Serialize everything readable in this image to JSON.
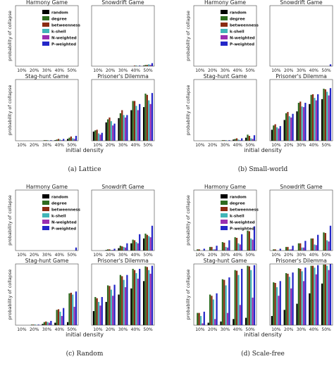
{
  "chart_data": {
    "type": "bar",
    "series_names": [
      "random",
      "degree",
      "betweenness",
      "k-shell",
      "N-weighted",
      "P-weighted"
    ],
    "colors": [
      "#000000",
      "#2e6b1f",
      "#8b2b12",
      "#42b6b8",
      "#9b2fb0",
      "#2427c8"
    ],
    "categories": [
      "10%",
      "20%",
      "30%",
      "40%",
      "50%"
    ],
    "xlabel": "initial density",
    "ylabel": "probability of collapse",
    "ylim": [
      0,
      1
    ],
    "grid": false,
    "legend_location": "inside first subplot of each group",
    "groups": [
      {
        "caption": "(a) Lattice",
        "panels": [
          {
            "title": "Harmony Game",
            "legend": true,
            "values": [
              [
                0,
                0,
                0,
                0,
                0
              ],
              [
                0,
                0,
                0,
                0,
                0
              ],
              [
                0,
                0,
                0,
                0,
                0
              ],
              [
                0,
                0,
                0,
                0,
                0
              ],
              [
                0,
                0,
                0,
                0,
                0
              ],
              [
                0,
                0,
                0,
                0,
                0
              ]
            ]
          },
          {
            "title": "Snowdrift Game",
            "legend": false,
            "values": [
              [
                0,
                0,
                0,
                0,
                0.01
              ],
              [
                0,
                0,
                0,
                0,
                0.02
              ],
              [
                0,
                0,
                0,
                0.01,
                0.02
              ],
              [
                0,
                0,
                0,
                0.01,
                0.03
              ],
              [
                0,
                0,
                0,
                0,
                0.02
              ],
              [
                0,
                0,
                0,
                0.01,
                0.05
              ]
            ]
          },
          {
            "title": "Stag-hunt Game",
            "legend": false,
            "values": [
              [
                0,
                0,
                0,
                0.01,
                0.03
              ],
              [
                0,
                0,
                0.01,
                0.02,
                0.05
              ],
              [
                0,
                0,
                0.01,
                0.03,
                0.07
              ],
              [
                0,
                0,
                0.01,
                0.02,
                0.04
              ],
              [
                0,
                0,
                0,
                0.01,
                0.03
              ],
              [
                0,
                0,
                0.01,
                0.03,
                0.08
              ]
            ]
          },
          {
            "title": "Prisoner's Dilemma",
            "legend": false,
            "values": [
              [
                0.15,
                0.3,
                0.37,
                0.5,
                0.55
              ],
              [
                0.17,
                0.35,
                0.45,
                0.65,
                0.77
              ],
              [
                0.18,
                0.38,
                0.5,
                0.65,
                0.75
              ],
              [
                0.12,
                0.32,
                0.42,
                0.57,
                0.66
              ],
              [
                0.1,
                0.25,
                0.38,
                0.5,
                0.6
              ],
              [
                0.13,
                0.28,
                0.42,
                0.6,
                0.78
              ]
            ]
          }
        ]
      },
      {
        "caption": "(b) Small-world",
        "panels": [
          {
            "title": "Harmony Game",
            "legend": true,
            "values": [
              [
                0,
                0,
                0,
                0,
                0
              ],
              [
                0,
                0,
                0,
                0,
                0
              ],
              [
                0,
                0,
                0,
                0,
                0
              ],
              [
                0,
                0,
                0,
                0,
                0
              ],
              [
                0,
                0,
                0,
                0,
                0
              ],
              [
                0,
                0,
                0,
                0,
                0
              ]
            ]
          },
          {
            "title": "Snowdrift Game",
            "legend": false,
            "values": [
              [
                0,
                0,
                0,
                0,
                0
              ],
              [
                0,
                0,
                0,
                0,
                0
              ],
              [
                0,
                0,
                0,
                0,
                0
              ],
              [
                0,
                0,
                0,
                0,
                0
              ],
              [
                0,
                0,
                0,
                0,
                0
              ],
              [
                0,
                0,
                0,
                0,
                0.03
              ]
            ]
          },
          {
            "title": "Stag-hunt Game",
            "legend": false,
            "values": [
              [
                0,
                0,
                0,
                0.02,
                0.05
              ],
              [
                0,
                0,
                0.01,
                0.03,
                0.1
              ],
              [
                0,
                0,
                0.01,
                0.04,
                0.08
              ],
              [
                0,
                0,
                0.01,
                0.02,
                0.04
              ],
              [
                0,
                0,
                0,
                0.01,
                0.03
              ],
              [
                0,
                0,
                0.01,
                0.04,
                0.09
              ]
            ]
          },
          {
            "title": "Prisoner's Dilemma",
            "legend": false,
            "values": [
              [
                0.18,
                0.34,
                0.48,
                0.6,
                0.68
              ],
              [
                0.25,
                0.45,
                0.62,
                0.75,
                0.85
              ],
              [
                0.27,
                0.47,
                0.64,
                0.76,
                0.84
              ],
              [
                0.22,
                0.4,
                0.56,
                0.7,
                0.8
              ],
              [
                0.2,
                0.38,
                0.55,
                0.66,
                0.74
              ],
              [
                0.24,
                0.44,
                0.62,
                0.76,
                0.86
              ]
            ]
          }
        ]
      },
      {
        "caption": "(c) Random",
        "panels": [
          {
            "title": "Harmony Game",
            "legend": true,
            "values": [
              [
                0,
                0,
                0,
                0,
                0
              ],
              [
                0,
                0,
                0,
                0,
                0
              ],
              [
                0,
                0,
                0,
                0,
                0
              ],
              [
                0,
                0,
                0,
                0,
                0
              ],
              [
                0,
                0,
                0,
                0,
                0
              ],
              [
                0,
                0,
                0,
                0,
                0.05
              ]
            ]
          },
          {
            "title": "Snowdrift Game",
            "legend": false,
            "values": [
              [
                0,
                0.01,
                0.04,
                0.12,
                0.2
              ],
              [
                0,
                0.02,
                0.08,
                0.18,
                0.28
              ],
              [
                0,
                0.02,
                0.07,
                0.17,
                0.26
              ],
              [
                0,
                0.01,
                0.06,
                0.14,
                0.24
              ],
              [
                0,
                0.01,
                0.05,
                0.12,
                0.22
              ],
              [
                0,
                0.03,
                0.12,
                0.27,
                0.41
              ]
            ]
          },
          {
            "title": "Stag-hunt Game",
            "legend": false,
            "values": [
              [
                0,
                0,
                0.02,
                0.04,
                0.05
              ],
              [
                0,
                0.01,
                0.05,
                0.25,
                0.52
              ],
              [
                0,
                0.01,
                0.06,
                0.26,
                0.53
              ],
              [
                0,
                0.01,
                0.05,
                0.22,
                0.5
              ],
              [
                0,
                0,
                0.04,
                0.15,
                0.3
              ],
              [
                0,
                0.01,
                0.07,
                0.28,
                0.55
              ]
            ]
          },
          {
            "title": "Prisoner's Dilemma",
            "legend": false,
            "values": [
              [
                0.23,
                0.38,
                0.5,
                0.6,
                0.72
              ],
              [
                0.46,
                0.65,
                0.82,
                0.92,
                0.96
              ],
              [
                0.44,
                0.64,
                0.8,
                0.9,
                0.95
              ],
              [
                0.38,
                0.58,
                0.74,
                0.85,
                0.9
              ],
              [
                0.32,
                0.48,
                0.62,
                0.76,
                0.84
              ],
              [
                0.46,
                0.66,
                0.82,
                0.92,
                0.97
              ]
            ]
          }
        ]
      },
      {
        "caption": "(d) Scale-free",
        "panels": [
          {
            "title": "Harmony Game",
            "legend": true,
            "values": [
              [
                0,
                0,
                0,
                0,
                0
              ],
              [
                0.02,
                0.06,
                0.14,
                0.22,
                0.33
              ],
              [
                0.02,
                0.06,
                0.13,
                0.21,
                0.32
              ],
              [
                0,
                0.02,
                0.06,
                0.12,
                0.2
              ],
              [
                0,
                0.02,
                0.05,
                0.1,
                0.18
              ],
              [
                0.03,
                0.08,
                0.17,
                0.27,
                0.4
              ]
            ]
          },
          {
            "title": "Snowdrift Game",
            "legend": false,
            "values": [
              [
                0,
                0,
                0,
                0,
                0
              ],
              [
                0.02,
                0.06,
                0.12,
                0.2,
                0.3
              ],
              [
                0.02,
                0.06,
                0.12,
                0.2,
                0.29
              ],
              [
                0,
                0.02,
                0.05,
                0.1,
                0.17
              ],
              [
                0,
                0.02,
                0.05,
                0.09,
                0.15
              ],
              [
                0.03,
                0.08,
                0.16,
                0.26,
                0.41
              ]
            ]
          },
          {
            "title": "Stag-hunt Game",
            "legend": false,
            "values": [
              [
                0,
                0.04,
                0.06,
                0.1,
                0.12
              ],
              [
                0.2,
                0.5,
                0.75,
                0.9,
                0.97
              ],
              [
                0.2,
                0.48,
                0.74,
                0.89,
                0.96
              ],
              [
                0.15,
                0.42,
                0.65,
                0.82,
                0.9
              ],
              [
                0.03,
                0.1,
                0.2,
                0.33,
                0.45
              ],
              [
                0.22,
                0.52,
                0.78,
                0.92,
                0.98
              ]
            ]
          },
          {
            "title": "Prisoner's Dilemma",
            "legend": false,
            "values": [
              [
                0.15,
                0.25,
                0.35,
                0.52,
                0.68
              ],
              [
                0.7,
                0.85,
                0.93,
                0.97,
                0.99
              ],
              [
                0.69,
                0.84,
                0.92,
                0.97,
                0.99
              ],
              [
                0.62,
                0.79,
                0.88,
                0.94,
                0.97
              ],
              [
                0.48,
                0.6,
                0.72,
                0.83,
                0.9
              ],
              [
                0.72,
                0.86,
                0.94,
                0.98,
                1.0
              ]
            ]
          }
        ]
      }
    ]
  }
}
